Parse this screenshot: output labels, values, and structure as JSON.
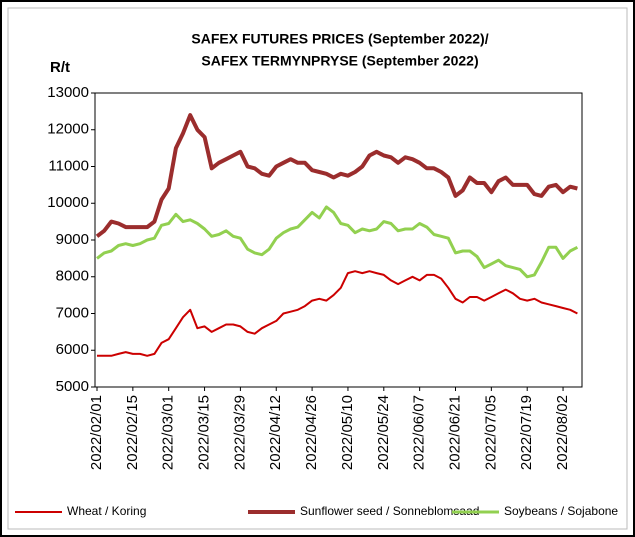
{
  "chart_data": {
    "type": "line",
    "title": "SAFEX FUTURES PRICES (September 2022)/",
    "subtitle": "SAFEX TERMYNPRYSE  (September 2022)",
    "ylabel": "R/t",
    "categories": [
      "2022/02/01",
      null,
      null,
      null,
      null,
      "2022/02/15",
      null,
      null,
      null,
      null,
      "2022/03/01",
      null,
      null,
      null,
      null,
      "2022/03/15",
      null,
      null,
      null,
      null,
      "2022/03/29",
      null,
      null,
      null,
      null,
      "2022/04/12",
      null,
      null,
      null,
      null,
      "2022/04/26",
      null,
      null,
      null,
      null,
      "2022/05/10",
      null,
      null,
      null,
      null,
      "2022/05/24",
      null,
      null,
      null,
      null,
      "2022/06/07",
      null,
      null,
      null,
      null,
      "2022/06/21",
      null,
      null,
      null,
      null,
      "2022/07/05",
      null,
      null,
      null,
      null,
      "2022/07/19",
      null,
      null,
      null,
      null,
      "2022/08/02",
      null,
      null
    ],
    "series": [
      {
        "name": "Wheat / Koring",
        "color": "#cc0000",
        "values": [
          5850,
          5850,
          5850,
          5900,
          5950,
          5900,
          5900,
          5850,
          5900,
          6200,
          6300,
          6600,
          6900,
          7100,
          6600,
          6650,
          6500,
          6600,
          6700,
          6700,
          6650,
          6500,
          6450,
          6600,
          6700,
          6800,
          7000,
          7050,
          7100,
          7200,
          7350,
          7400,
          7350,
          7500,
          7700,
          8100,
          8150,
          8100,
          8150,
          8100,
          8050,
          7900,
          7800,
          7900,
          8000,
          7900,
          8050,
          8050,
          7950,
          7700,
          7400,
          7300,
          7450,
          7450,
          7350,
          7450,
          7550,
          7650,
          7550,
          7400,
          7350,
          7400,
          7300,
          7250,
          7200,
          7150,
          7100,
          7000
        ]
      },
      {
        "name": "Sunflower seed / Sonneblomsaad",
        "color": "#9b2d2d",
        "values": [
          9100,
          9250,
          9500,
          9450,
          9350,
          9350,
          9350,
          9350,
          9500,
          10100,
          10400,
          11500,
          11900,
          12400,
          12000,
          11800,
          10950,
          11100,
          11200,
          11300,
          11400,
          11000,
          10950,
          10800,
          10750,
          11000,
          11100,
          11200,
          11100,
          11100,
          10900,
          10850,
          10800,
          10700,
          10800,
          10750,
          10850,
          11000,
          11300,
          11400,
          11300,
          11250,
          11100,
          11250,
          11200,
          11100,
          10950,
          10950,
          10850,
          10700,
          10200,
          10350,
          10700,
          10550,
          10550,
          10300,
          10600,
          10700,
          10500,
          10500,
          10500,
          10250,
          10200,
          10450,
          10500,
          10300,
          10450,
          10400
        ]
      },
      {
        "name": "Soybeans / Sojabone",
        "color": "#92d050",
        "values": [
          8500,
          8650,
          8700,
          8850,
          8900,
          8850,
          8900,
          9000,
          9050,
          9400,
          9450,
          9700,
          9500,
          9550,
          9450,
          9300,
          9100,
          9150,
          9250,
          9100,
          9050,
          8750,
          8650,
          8600,
          8750,
          9050,
          9200,
          9300,
          9350,
          9550,
          9750,
          9600,
          9900,
          9750,
          9450,
          9400,
          9200,
          9300,
          9250,
          9300,
          9500,
          9450,
          9250,
          9300,
          9300,
          9450,
          9350,
          9150,
          9100,
          9050,
          8650,
          8700,
          8700,
          8550,
          8250,
          8350,
          8450,
          8300,
          8250,
          8200,
          8000,
          8050,
          8400,
          8800,
          8800,
          8500,
          8700,
          8800
        ]
      }
    ],
    "ylim": [
      5000,
      13000
    ],
    "yticks": [
      5000,
      6000,
      7000,
      8000,
      9000,
      10000,
      11000,
      12000,
      13000
    ],
    "legend": "bottom"
  }
}
